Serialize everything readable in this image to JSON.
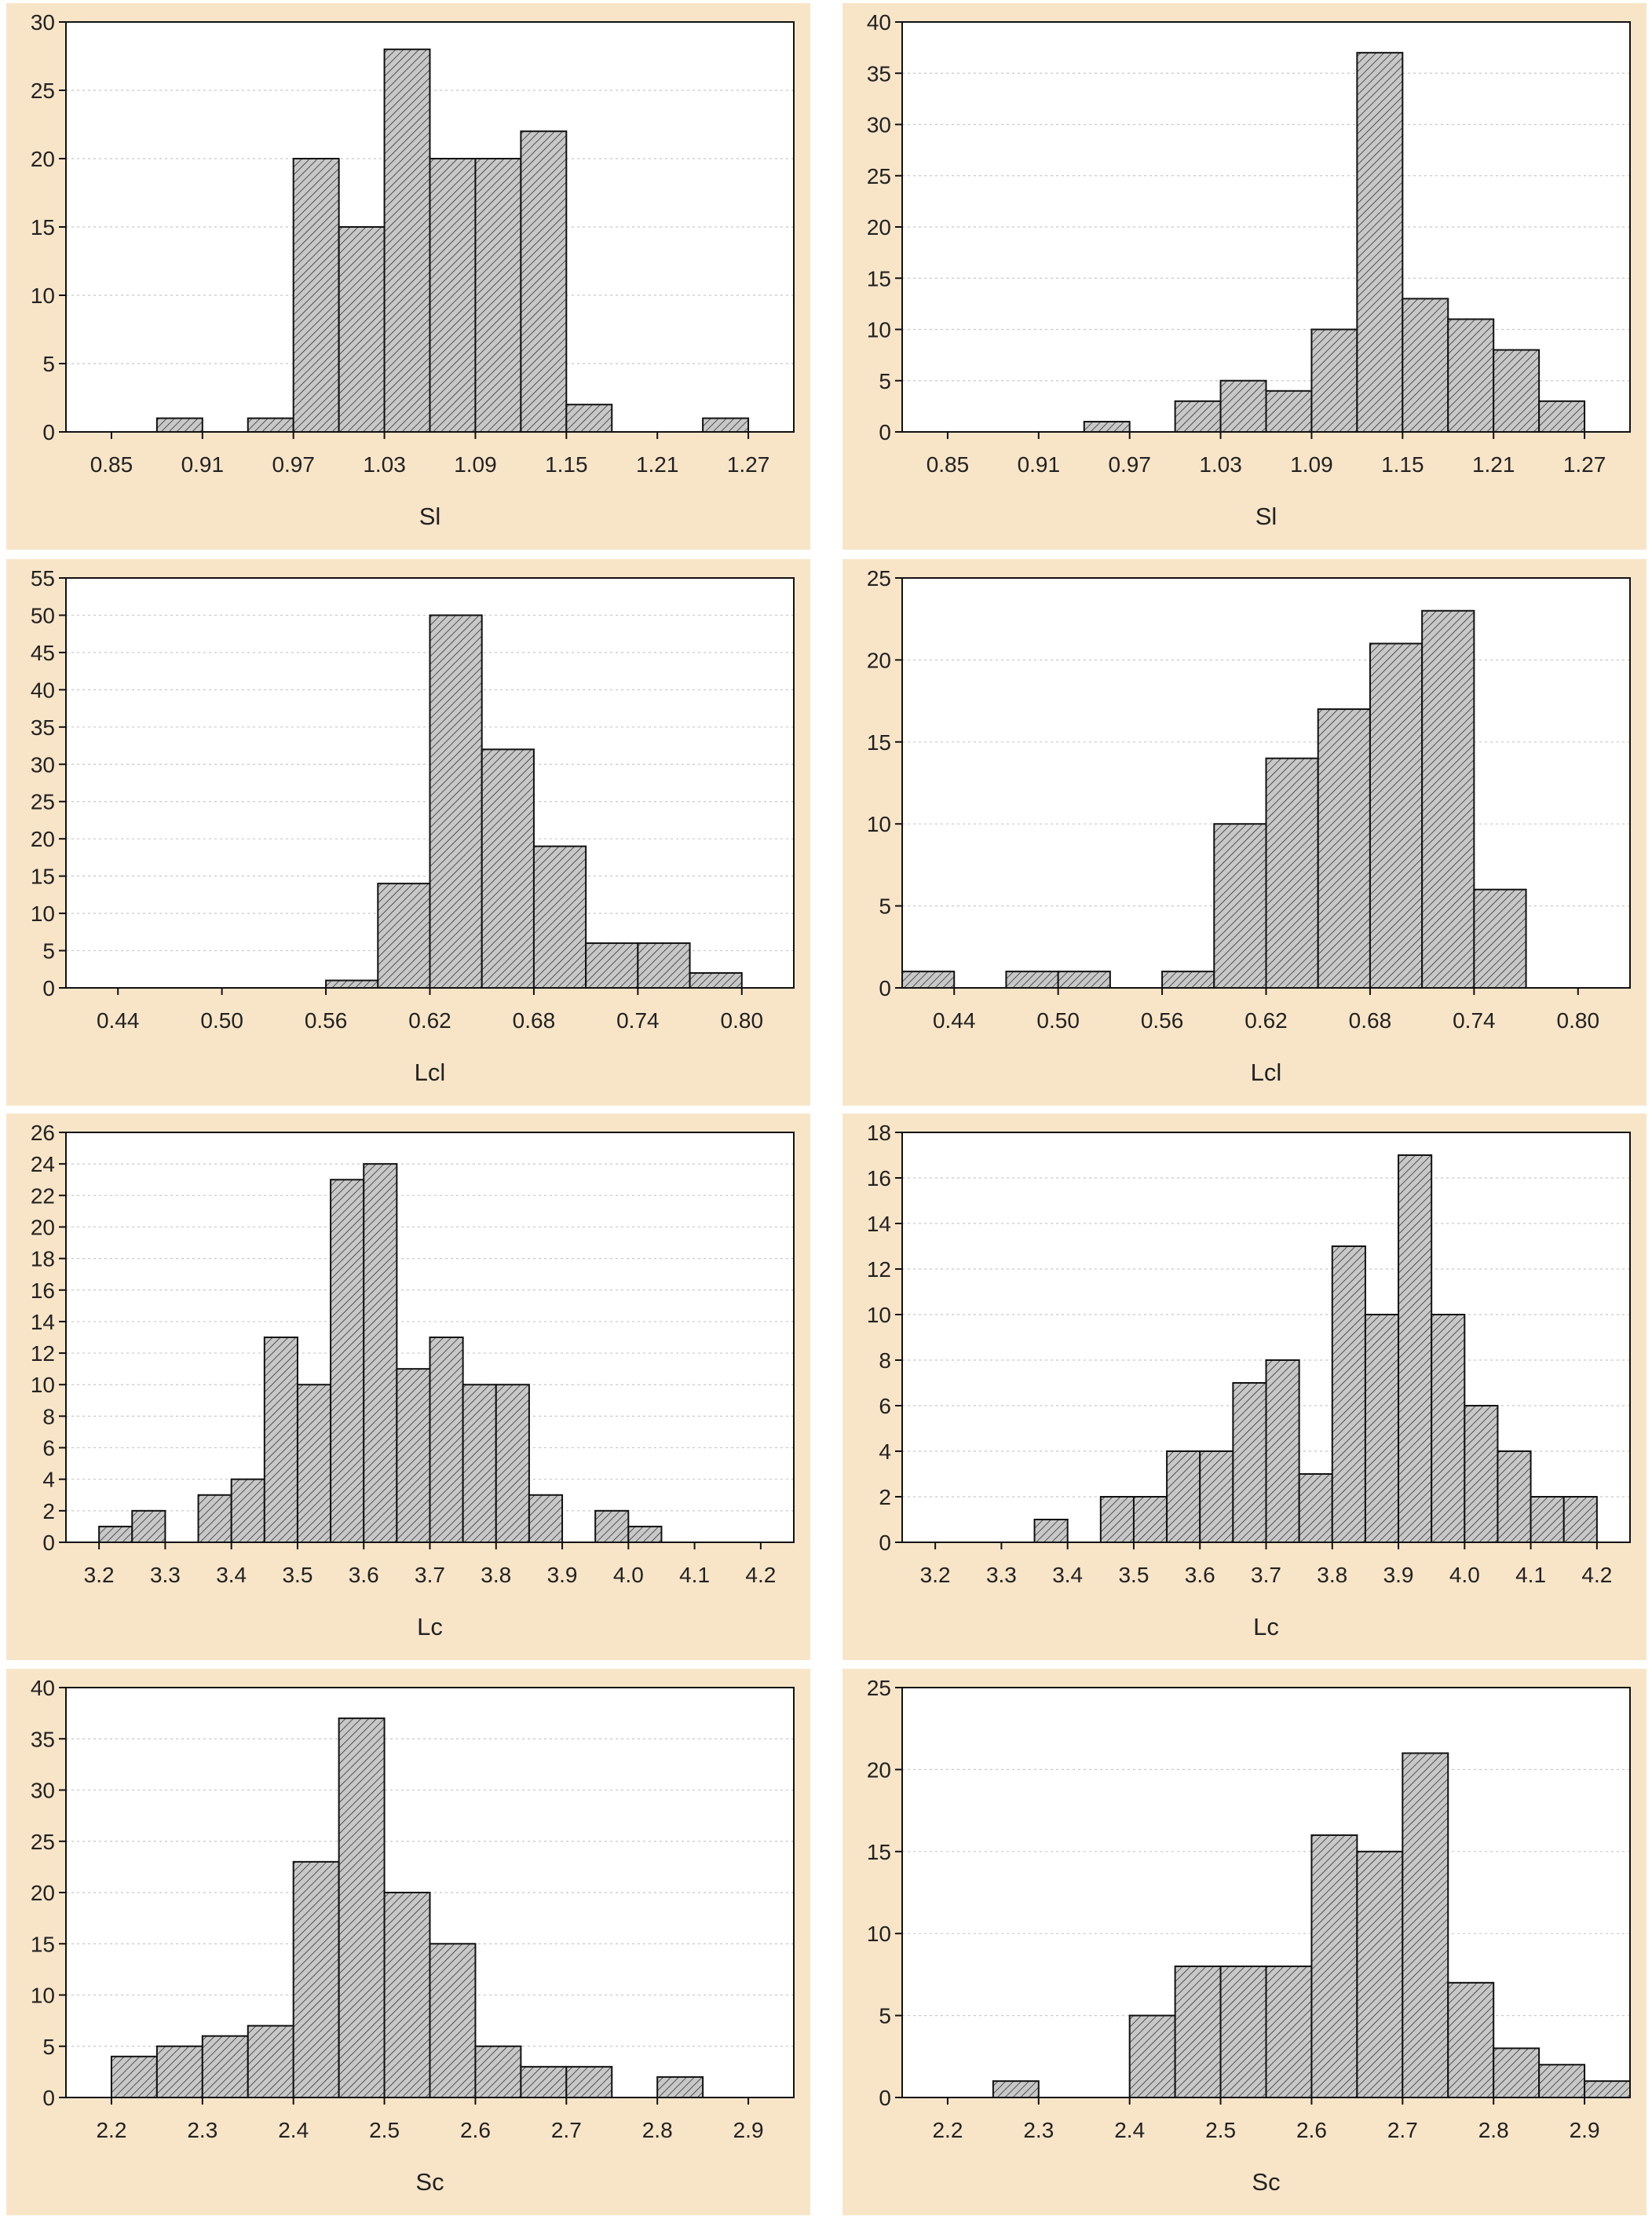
{
  "colors": {
    "panel_background": "#f8e5c8",
    "plot_background": "#ffffff",
    "bar_fill": "#c8c8c8",
    "bar_hatch": "#333333",
    "gridline": "#c8c8c8"
  },
  "chart_data": [
    {
      "type": "bar",
      "xlabel": "Sl",
      "ylim": [
        0,
        30
      ],
      "yticks": [
        0,
        5,
        10,
        15,
        20,
        25,
        30
      ],
      "xlim": [
        0.82,
        1.3
      ],
      "xticks": [
        0.85,
        0.91,
        0.97,
        1.03,
        1.09,
        1.15,
        1.21,
        1.27
      ],
      "xtick_labels": [
        "0.85",
        "0.91",
        "0.97",
        "1.03",
        "1.09",
        "1.15",
        "1.21",
        "1.27"
      ],
      "bin_width": 0.03,
      "bin_starts": [
        0.88,
        0.94,
        0.97,
        1.0,
        1.03,
        1.06,
        1.09,
        1.12,
        1.15,
        1.24
      ],
      "values": [
        1,
        1,
        20,
        15,
        28,
        20,
        20,
        22,
        2,
        1
      ]
    },
    {
      "type": "bar",
      "xlabel": "Sl",
      "ylim": [
        0,
        40
      ],
      "yticks": [
        0,
        5,
        10,
        15,
        20,
        25,
        30,
        35,
        40
      ],
      "xlim": [
        0.82,
        1.3
      ],
      "xticks": [
        0.85,
        0.91,
        0.97,
        1.03,
        1.09,
        1.15,
        1.21,
        1.27
      ],
      "xtick_labels": [
        "0.85",
        "0.91",
        "0.97",
        "1.03",
        "1.09",
        "1.15",
        "1.21",
        "1.27"
      ],
      "bin_width": 0.03,
      "bin_starts": [
        0.94,
        1.0,
        1.03,
        1.06,
        1.09,
        1.12,
        1.15,
        1.18,
        1.21,
        1.24
      ],
      "values": [
        1,
        3,
        5,
        4,
        10,
        37,
        13,
        11,
        8,
        3
      ]
    },
    {
      "type": "bar",
      "xlabel": "Lcl",
      "ylim": [
        0,
        55
      ],
      "yticks": [
        0,
        5,
        10,
        15,
        20,
        25,
        30,
        35,
        40,
        45,
        50,
        55
      ],
      "xlim": [
        0.41,
        0.83
      ],
      "xticks": [
        0.44,
        0.5,
        0.56,
        0.62,
        0.68,
        0.74,
        0.8
      ],
      "xtick_labels": [
        "0.44",
        "0.50",
        "0.56",
        "0.62",
        "0.68",
        "0.74",
        "0.80"
      ],
      "bin_width": 0.03,
      "bin_starts": [
        0.56,
        0.59,
        0.62,
        0.65,
        0.68,
        0.71,
        0.74,
        0.77
      ],
      "values": [
        1,
        14,
        50,
        32,
        19,
        6,
        6,
        2
      ]
    },
    {
      "type": "bar",
      "xlabel": "Lcl",
      "ylim": [
        0,
        25
      ],
      "yticks": [
        0,
        5,
        10,
        15,
        20,
        25
      ],
      "xlim": [
        0.41,
        0.83
      ],
      "xticks": [
        0.44,
        0.5,
        0.56,
        0.62,
        0.68,
        0.74,
        0.8
      ],
      "xtick_labels": [
        "0.44",
        "0.50",
        "0.56",
        "0.62",
        "0.68",
        "0.74",
        "0.80"
      ],
      "bin_width": 0.03,
      "bin_starts": [
        0.41,
        0.47,
        0.5,
        0.56,
        0.59,
        0.62,
        0.65,
        0.68,
        0.71,
        0.74
      ],
      "values": [
        1,
        1,
        1,
        1,
        10,
        14,
        17,
        21,
        23,
        6
      ]
    },
    {
      "type": "bar",
      "xlabel": "Lc",
      "ylim": [
        0,
        26
      ],
      "yticks": [
        0,
        2,
        4,
        6,
        8,
        10,
        12,
        14,
        16,
        18,
        20,
        22,
        24,
        26
      ],
      "xlim": [
        3.15,
        4.25
      ],
      "xticks": [
        3.2,
        3.3,
        3.4,
        3.5,
        3.6,
        3.7,
        3.8,
        3.9,
        4.0,
        4.1,
        4.2
      ],
      "xtick_labels": [
        "3.2",
        "3.3",
        "3.4",
        "3.5",
        "3.6",
        "3.7",
        "3.8",
        "3.9",
        "4.0",
        "4.1",
        "4.2"
      ],
      "bin_width": 0.05,
      "bin_starts": [
        3.2,
        3.25,
        3.35,
        3.4,
        3.45,
        3.5,
        3.55,
        3.6,
        3.65,
        3.7,
        3.75,
        3.8,
        3.85,
        3.95,
        4.0
      ],
      "values": [
        1,
        2,
        3,
        4,
        13,
        10,
        23,
        24,
        11,
        13,
        10,
        10,
        3,
        2,
        1
      ]
    },
    {
      "type": "bar",
      "xlabel": "Lc",
      "ylim": [
        0,
        18
      ],
      "yticks": [
        0,
        2,
        4,
        6,
        8,
        10,
        12,
        14,
        16,
        18
      ],
      "xlim": [
        3.15,
        4.25
      ],
      "xticks": [
        3.2,
        3.3,
        3.4,
        3.5,
        3.6,
        3.7,
        3.8,
        3.9,
        4.0,
        4.1,
        4.2
      ],
      "xtick_labels": [
        "3.2",
        "3.3",
        "3.4",
        "3.5",
        "3.6",
        "3.7",
        "3.8",
        "3.9",
        "4.0",
        "4.1",
        "4.2"
      ],
      "bin_width": 0.05,
      "bin_starts": [
        3.35,
        3.45,
        3.5,
        3.55,
        3.6,
        3.65,
        3.7,
        3.75,
        3.8,
        3.85,
        3.9,
        3.95,
        4.0,
        4.05,
        4.1,
        4.15
      ],
      "values": [
        1,
        2,
        2,
        4,
        4,
        7,
        8,
        3,
        13,
        10,
        17,
        10,
        6,
        4,
        2,
        2
      ]
    },
    {
      "type": "bar",
      "xlabel": "Sc",
      "ylim": [
        0,
        40
      ],
      "yticks": [
        0,
        5,
        10,
        15,
        20,
        25,
        30,
        35,
        40
      ],
      "xlim": [
        2.15,
        2.95
      ],
      "xticks": [
        2.2,
        2.3,
        2.4,
        2.5,
        2.6,
        2.7,
        2.8,
        2.9
      ],
      "xtick_labels": [
        "2.2",
        "2.3",
        "2.4",
        "2.5",
        "2.6",
        "2.7",
        "2.8",
        "2.9"
      ],
      "bin_width": 0.05,
      "bin_starts": [
        2.2,
        2.25,
        2.3,
        2.35,
        2.4,
        2.45,
        2.5,
        2.55,
        2.6,
        2.65,
        2.7,
        2.8
      ],
      "values": [
        4,
        5,
        6,
        7,
        23,
        37,
        20,
        15,
        5,
        3,
        3,
        2
      ]
    },
    {
      "type": "bar",
      "xlabel": "Sc",
      "ylim": [
        0,
        25
      ],
      "yticks": [
        0,
        5,
        10,
        15,
        20,
        25
      ],
      "xlim": [
        2.15,
        2.95
      ],
      "xticks": [
        2.2,
        2.3,
        2.4,
        2.5,
        2.6,
        2.7,
        2.8,
        2.9
      ],
      "xtick_labels": [
        "2.2",
        "2.3",
        "2.4",
        "2.5",
        "2.6",
        "2.7",
        "2.8",
        "2.9"
      ],
      "bin_width": 0.05,
      "bin_starts": [
        2.25,
        2.4,
        2.45,
        2.5,
        2.55,
        2.6,
        2.65,
        2.7,
        2.75,
        2.8,
        2.85,
        2.9
      ],
      "values": [
        1,
        5,
        8,
        8,
        8,
        16,
        15,
        21,
        7,
        3,
        2,
        1
      ]
    }
  ]
}
